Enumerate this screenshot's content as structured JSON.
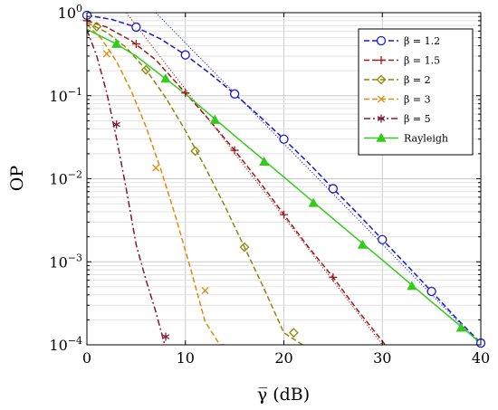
{
  "chart_data": {
    "type": "line",
    "xlabel": "γ̅ (dB)",
    "ylabel": "OP",
    "xlim": [
      0,
      40
    ],
    "ylim": [
      0.0001,
      1
    ],
    "yscale": "log",
    "grid": true,
    "legend_placement": "top-right",
    "x_ticks": [
      {
        "value": 0,
        "label": "0"
      },
      {
        "value": 10,
        "label": "10"
      },
      {
        "value": 20,
        "label": "20"
      },
      {
        "value": 30,
        "label": "30"
      },
      {
        "value": 40,
        "label": "40"
      }
    ],
    "y_ticks": [
      {
        "value": 1,
        "base": "10",
        "exp": "0"
      },
      {
        "value": 0.1,
        "base": "10",
        "exp": "−1"
      },
      {
        "value": 0.01,
        "base": "10",
        "exp": "−2"
      },
      {
        "value": 0.001,
        "base": "10",
        "exp": "−3"
      },
      {
        "value": 0.0001,
        "base": "10",
        "exp": "−4"
      }
    ],
    "series": [
      {
        "name": "β = 1.2",
        "color": "#1a1acc",
        "marker": "circle",
        "dash": "dashed",
        "x": [
          0,
          2.5,
          5,
          7.5,
          10,
          12.5,
          15,
          17.5,
          20,
          22.5,
          25,
          27.5,
          30,
          32.5,
          35,
          37.5,
          40
        ],
        "y": [
          0.93,
          0.83,
          0.67,
          0.48,
          0.31,
          0.185,
          0.105,
          0.057,
          0.03,
          0.0155,
          0.0076,
          0.0038,
          0.00185,
          0.00091,
          0.00044,
          0.00021,
          0.000105
        ],
        "marker_x": [
          0,
          5,
          10,
          15,
          20,
          25,
          30,
          35,
          40
        ],
        "marker_y": [
          0.93,
          0.67,
          0.31,
          0.105,
          0.03,
          0.0076,
          0.00185,
          0.00044,
          0.000105
        ]
      },
      {
        "name": "β = 1.5",
        "color": "#9e1a1a",
        "marker": "plus",
        "dash": "dashed",
        "x": [
          0,
          2,
          4.5,
          7,
          10,
          12.5,
          15,
          17.5,
          20,
          22.5,
          25,
          27.5,
          30.3
        ],
        "y": [
          0.8,
          0.67,
          0.46,
          0.27,
          0.108,
          0.05,
          0.022,
          0.0093,
          0.0037,
          0.0015,
          0.00065,
          0.00026,
          0.0001
        ],
        "marker_x": [
          0,
          5,
          10,
          15,
          20,
          25
        ],
        "marker_y": [
          0.8,
          0.42,
          0.108,
          0.022,
          0.0037,
          0.00065
        ]
      },
      {
        "name": "β = 2",
        "color": "#8a8a0a",
        "marker": "diamond",
        "dash": "dashed",
        "x": [
          0,
          2,
          4,
          6,
          8,
          10,
          12,
          14,
          16,
          18,
          20,
          21.9
        ],
        "y": [
          0.76,
          0.58,
          0.38,
          0.205,
          0.095,
          0.038,
          0.0138,
          0.0047,
          0.0015,
          0.00047,
          0.00014,
          0.0001
        ],
        "marker_x": [
          1,
          6,
          11,
          16,
          21
        ],
        "marker_y": [
          0.68,
          0.205,
          0.0215,
          0.0015,
          0.00014
        ]
      },
      {
        "name": "β = 3",
        "color": "#e08a0a",
        "marker": "x",
        "dash": "dashed",
        "x": [
          0,
          1.5,
          3,
          4.5,
          6,
          7.5,
          9,
          10.5,
          12,
          13.5,
          14.1
        ],
        "y": [
          0.72,
          0.48,
          0.26,
          0.115,
          0.042,
          0.013,
          0.0035,
          0.00085,
          0.00019,
          0.0001,
          0.0001
        ],
        "marker_x": [
          2,
          7,
          12
        ],
        "marker_y": [
          0.32,
          0.0135,
          0.00045
        ]
      },
      {
        "name": "β = 5",
        "color": "#801a3a",
        "marker": "star",
        "dash": "dashdot",
        "x": [
          0,
          1,
          2,
          3,
          4,
          5,
          6,
          7,
          7.9
        ],
        "y": [
          0.62,
          0.3,
          0.11,
          0.031,
          0.0075,
          0.0016,
          0.0006,
          0.00025,
          0.0001
        ],
        "marker_x": [
          3,
          8
        ],
        "marker_y": [
          0.045,
          0.000125
        ]
      },
      {
        "name": "Rayleigh",
        "color": "#33cc1a",
        "marker": "triangle",
        "dash": "solid",
        "x": [
          0,
          3,
          5,
          10,
          15,
          20,
          25,
          30,
          35,
          40
        ],
        "y": [
          0.63,
          0.42,
          0.3,
          0.105,
          0.033,
          0.0105,
          0.0033,
          0.00105,
          0.00033,
          0.000105
        ],
        "marker_x": [
          3,
          8,
          13,
          18,
          23,
          28,
          33,
          38
        ],
        "marker_y": [
          0.42,
          0.16,
          0.051,
          0.016,
          0.0051,
          0.0016,
          0.00051,
          0.00016
        ]
      }
    ],
    "asymptotes": [
      {
        "color": "#1a1acc",
        "x": [
          7,
          40
        ],
        "y": [
          1.0,
          0.0001
        ]
      },
      {
        "color": "#9e1a1a",
        "x": [
          4,
          30
        ],
        "y": [
          1.0,
          0.0001
        ]
      }
    ]
  }
}
